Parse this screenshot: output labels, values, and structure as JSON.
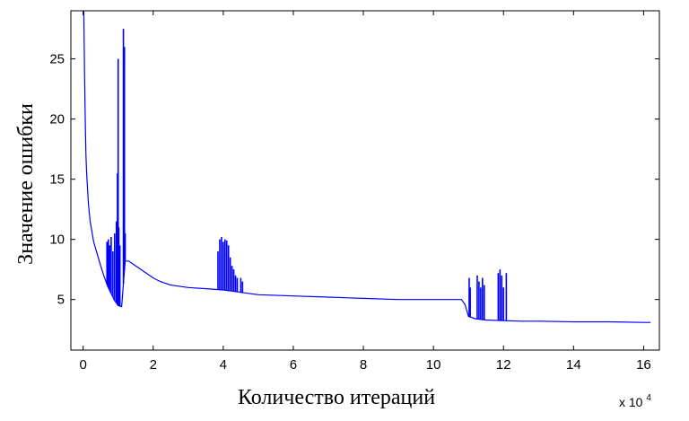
{
  "chart_data": {
    "type": "line",
    "title": "",
    "xlabel": "Количество итераций",
    "ylabel": "Значение ошибки",
    "x_multiplier_label": "x 10",
    "x_multiplier_exponent": "4",
    "xlim": [
      -0.35,
      16.45
    ],
    "ylim": [
      0.8,
      29
    ],
    "xticks": [
      0,
      2,
      4,
      6,
      8,
      10,
      12,
      14,
      16
    ],
    "yticks": [
      5,
      10,
      15,
      20,
      25
    ],
    "grid": false,
    "line_color": "#0000ff",
    "series": [
      {
        "x": [
          0.02,
          0.04,
          0.06,
          0.08,
          0.1,
          0.15,
          0.2,
          0.3,
          0.4,
          0.5,
          0.6,
          0.7,
          0.8,
          0.9,
          1.0,
          1.1,
          1.2,
          1.3,
          1.4,
          1.6,
          1.8,
          2.0,
          2.2,
          2.5,
          3.0,
          3.5,
          4.0,
          4.5,
          5.0,
          6.0,
          7.0,
          8.0,
          9.0,
          10.0,
          10.8,
          10.9,
          11.0,
          11.2,
          11.5,
          12.0,
          12.5,
          13.0,
          14.0,
          15.0,
          16.0,
          16.2
        ],
        "y": [
          29,
          24,
          20,
          17,
          15.5,
          13,
          11.5,
          9.8,
          8.8,
          7.8,
          6.9,
          6.1,
          5.5,
          4.9,
          4.5,
          4.4,
          8.2,
          8.2,
          8.0,
          7.6,
          7.2,
          6.8,
          6.5,
          6.2,
          6.0,
          5.9,
          5.8,
          5.6,
          5.4,
          5.3,
          5.2,
          5.1,
          5.0,
          5.0,
          5.0,
          4.6,
          3.6,
          3.4,
          3.3,
          3.25,
          3.2,
          3.2,
          3.15,
          3.15,
          3.1,
          3.1
        ]
      }
    ],
    "spikes": [
      {
        "x": 0.68,
        "y": 9.8
      },
      {
        "x": 0.72,
        "y": 10.0
      },
      {
        "x": 0.76,
        "y": 9.5
      },
      {
        "x": 0.8,
        "y": 10.2
      },
      {
        "x": 0.85,
        "y": 9.0
      },
      {
        "x": 0.9,
        "y": 10.5
      },
      {
        "x": 0.95,
        "y": 11.5
      },
      {
        "x": 0.98,
        "y": 15.5
      },
      {
        "x": 1.0,
        "y": 25.0
      },
      {
        "x": 1.02,
        "y": 11.0
      },
      {
        "x": 1.05,
        "y": 9.5
      },
      {
        "x": 1.15,
        "y": 27.5
      },
      {
        "x": 1.18,
        "y": 26.0
      },
      {
        "x": 1.2,
        "y": 10.5
      },
      {
        "x": 3.85,
        "y": 9.0
      },
      {
        "x": 3.9,
        "y": 10.0
      },
      {
        "x": 3.95,
        "y": 10.2
      },
      {
        "x": 4.0,
        "y": 9.8
      },
      {
        "x": 4.05,
        "y": 10.0
      },
      {
        "x": 4.1,
        "y": 9.9
      },
      {
        "x": 4.15,
        "y": 9.5
      },
      {
        "x": 4.2,
        "y": 8.5
      },
      {
        "x": 4.25,
        "y": 7.8
      },
      {
        "x": 4.3,
        "y": 7.5
      },
      {
        "x": 4.35,
        "y": 7.0
      },
      {
        "x": 4.4,
        "y": 6.8
      },
      {
        "x": 4.5,
        "y": 6.8
      },
      {
        "x": 4.55,
        "y": 6.5
      },
      {
        "x": 11.02,
        "y": 6.8
      },
      {
        "x": 11.05,
        "y": 6.0
      },
      {
        "x": 11.25,
        "y": 7.0
      },
      {
        "x": 11.3,
        "y": 6.5
      },
      {
        "x": 11.35,
        "y": 6.0
      },
      {
        "x": 11.4,
        "y": 6.8
      },
      {
        "x": 11.45,
        "y": 6.2
      },
      {
        "x": 11.85,
        "y": 7.2
      },
      {
        "x": 11.9,
        "y": 7.5
      },
      {
        "x": 11.95,
        "y": 7.0
      },
      {
        "x": 12.0,
        "y": 6.0
      },
      {
        "x": 12.08,
        "y": 7.2
      }
    ]
  }
}
